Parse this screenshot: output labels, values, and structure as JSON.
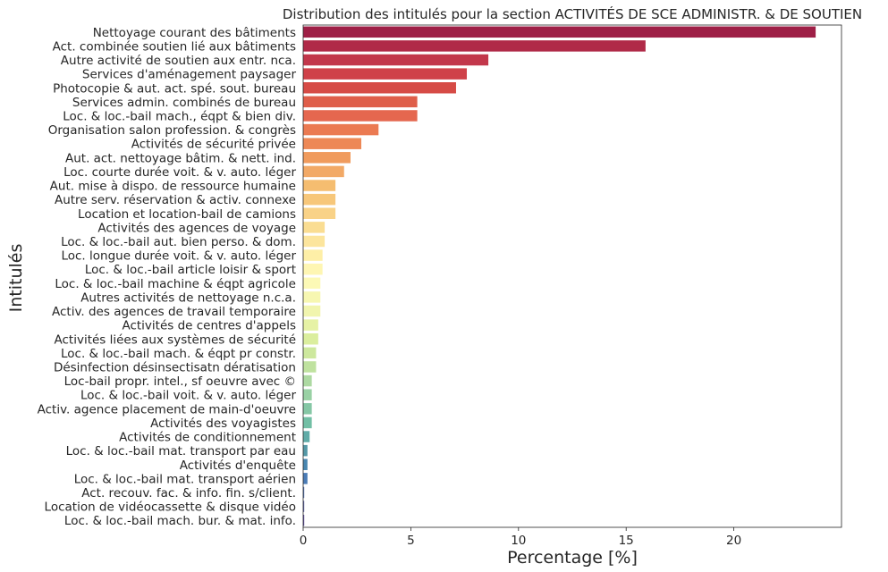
{
  "chart_data": {
    "type": "bar",
    "orientation": "horizontal",
    "title": "Distribution des intitulés pour la section ACTIVITÉS DE SCE ADMINISTR. & DE SOUTIEN",
    "xlabel": "Percentage [%]",
    "ylabel": "Intitulés",
    "xlim": [
      0,
      25
    ],
    "xticks": [
      0,
      5,
      10,
      15,
      20
    ],
    "grid": false,
    "categories": [
      "Nettoyage courant des bâtiments",
      "Act. combinée soutien lié aux bâtiments",
      "Autre activité de soutien aux entr. nca.",
      "Services d'aménagement paysager",
      "Photocopie & aut. act. spé. sout. bureau",
      "Services admin. combinés de bureau",
      "Loc. & loc.-bail mach., éqpt & bien div.",
      "Organisation salon profession. & congrès",
      "Activités de sécurité privée",
      "Aut. act. nettoyage bâtim. & nett. ind.",
      "Loc. courte durée voit. & v. auto. léger",
      "Aut. mise à dispo. de ressource humaine",
      "Autre serv. réservation & activ. connexe",
      "Location et location-bail de camions",
      "Activités des agences de voyage",
      "Loc. & loc.-bail aut. bien perso. & dom.",
      "Loc. longue durée voit. & v. auto. léger",
      "Loc. & loc.-bail article loisir & sport",
      "Loc. & loc.-bail machine & éqpt agricole",
      "Autres activités de nettoyage n.c.a.",
      "Activ. des agences de travail temporaire",
      "Activités de centres d'appels",
      "Activités liées aux systèmes de sécurité",
      "Loc. & loc.-bail mach. & éqpt pr constr.",
      "Désinfection désinsectisatn dératisation",
      "Loc-bail propr. intel., sf oeuvre avec ©",
      "Loc. & loc.-bail voit. & v. auto. léger",
      "Activ. agence placement de main-d'oeuvre",
      "Activités des voyagistes",
      "Activités de conditionnement",
      "Loc. & loc.-bail mat. transport par eau",
      "Activités d'enquête",
      "Loc. & loc.-bail mat. transport aérien",
      "Act. recouv. fac. & info. fin. s/client.",
      "Location de vidéocassette & disque vidéo",
      "Loc. & loc.-bail mach. bur. & mat. info."
    ],
    "values": [
      23.8,
      15.9,
      8.6,
      7.6,
      7.1,
      5.3,
      5.3,
      3.5,
      2.7,
      2.2,
      1.9,
      1.5,
      1.5,
      1.5,
      1.0,
      1.0,
      0.9,
      0.9,
      0.8,
      0.8,
      0.8,
      0.7,
      0.7,
      0.6,
      0.6,
      0.4,
      0.4,
      0.4,
      0.4,
      0.3,
      0.2,
      0.2,
      0.2,
      0.05,
      0.05,
      0.05
    ],
    "colors": [
      "#9e1f46",
      "#b02a48",
      "#c2374b",
      "#cf4149",
      "#d64b46",
      "#df5e4a",
      "#e5674f",
      "#eb7a52",
      "#ed8856",
      "#f09b5d",
      "#f2a966",
      "#f5bd70",
      "#f7c77a",
      "#f9d287",
      "#fadd92",
      "#fce59d",
      "#feefa7",
      "#fef6b3",
      "#fcf9b6",
      "#f7f7b1",
      "#f1f5ae",
      "#e6f2a5",
      "#dbee9e",
      "#cde89d",
      "#bfe29f",
      "#add9a2",
      "#99d1a4",
      "#85c7a5",
      "#72bfa5",
      "#60aba7",
      "#5498a6",
      "#4886b0",
      "#4a7bb5",
      "#5672b3",
      "#5e64a9",
      "#5e4fa2"
    ]
  }
}
